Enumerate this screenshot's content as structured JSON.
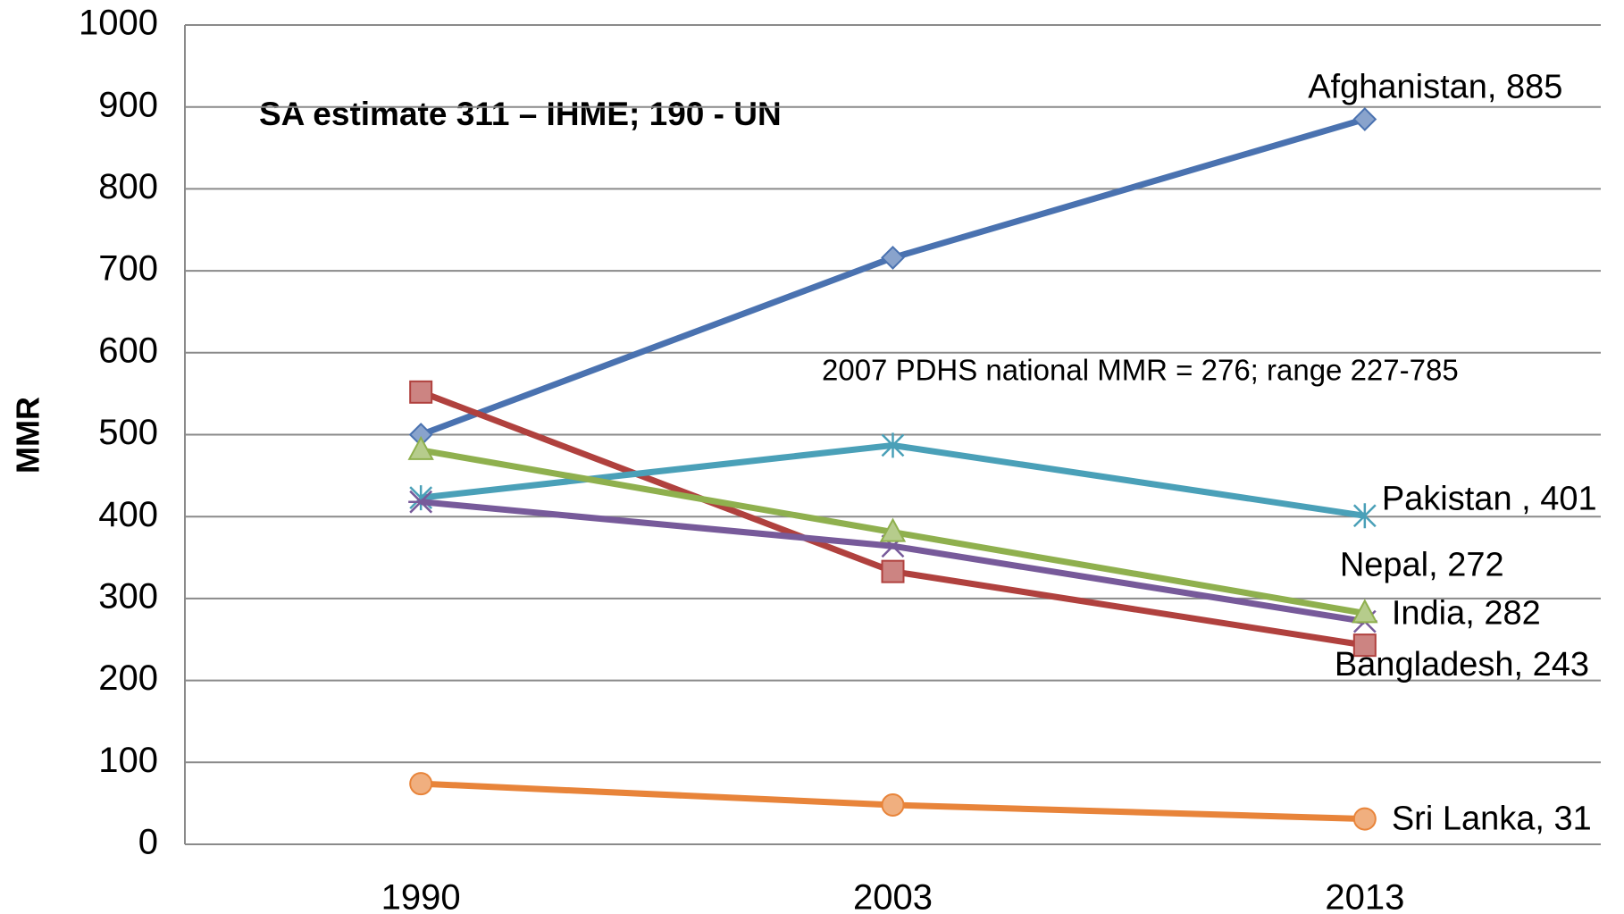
{
  "chart_data": {
    "type": "line",
    "y_label": "MMR",
    "annotations": [
      "SA estimate 311 – IHME; 190 - UN",
      "2007 PDHS national MMR = 276; range 227-785"
    ],
    "categories": [
      "1990",
      "2003",
      "2013"
    ],
    "ylim": [
      0,
      1000
    ],
    "yticks": [
      0,
      100,
      200,
      300,
      400,
      500,
      600,
      700,
      800,
      900,
      1000
    ],
    "grid": true,
    "series": [
      {
        "color": "#4a72b0",
        "marker": "diamond",
        "values": [
          500,
          716,
          885
        ],
        "value_labels": [
          null,
          null,
          "Afghanistan, 885"
        ]
      },
      {
        "color": "#b0413e",
        "marker": "square",
        "values": [
          552,
          333,
          243
        ],
        "value_labels": [
          null,
          null,
          "Bangladesh, 243"
        ]
      },
      {
        "color": "#4aa0b8",
        "marker": "asterisk",
        "values": [
          423,
          487,
          401
        ],
        "value_labels": [
          null,
          null,
          "Pakistan , 401"
        ]
      },
      {
        "color": "#775a9a",
        "marker": "star",
        "values": [
          418,
          364,
          272
        ],
        "value_labels": [
          null,
          null,
          "Nepal, 272"
        ]
      },
      {
        "color": "#8fb04e",
        "marker": "triangle",
        "values": [
          481,
          381,
          282
        ],
        "value_labels": [
          null,
          null,
          "India, 282"
        ]
      },
      {
        "color": "#e8843a",
        "marker": "circle",
        "values": [
          74,
          48,
          31
        ],
        "value_labels": [
          null,
          null,
          "Sri Lanka, 31"
        ]
      }
    ]
  }
}
